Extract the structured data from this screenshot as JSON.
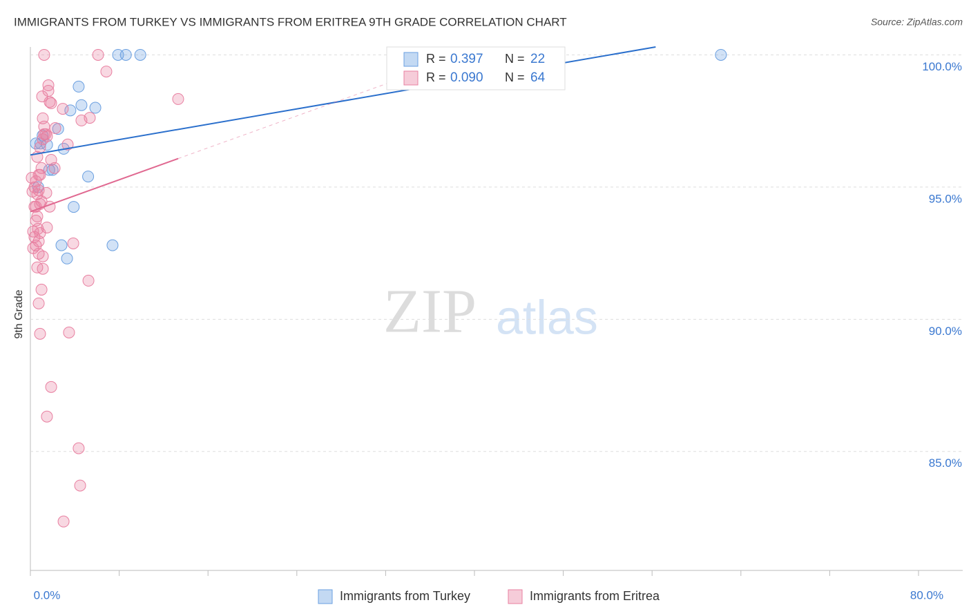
{
  "chart_data": {
    "type": "scatter",
    "title": "IMMIGRANTS FROM TURKEY VS IMMIGRANTS FROM ERITREA 9TH GRADE CORRELATION CHART",
    "source": "Source: ZipAtlas.com",
    "y_label": "9th Grade",
    "watermark": [
      "ZIP",
      "atlas"
    ],
    "r_label": "R =",
    "n_label": "N =",
    "xlim": [
      0,
      80
    ],
    "ylim": [
      80.5,
      100.3
    ],
    "xticks": [
      {
        "value": 0,
        "label": "0.0%"
      },
      {
        "value": 80,
        "label": "80.0%"
      }
    ],
    "yticks": [
      {
        "value": 85,
        "label": "85.0%"
      },
      {
        "value": 90,
        "label": "90.0%"
      },
      {
        "value": 95,
        "label": "95.0%"
      },
      {
        "value": 100,
        "label": "100.0%"
      }
    ],
    "grid": true,
    "series": [
      {
        "name": "Immigrants from Turkey",
        "color": "#6a9fe0",
        "line_color": "#2a6fcc",
        "r": 0.397,
        "n": 22,
        "x": [
          7.9,
          8.6,
          9.9,
          62.2,
          4.35,
          4.6,
          5.85,
          3.6,
          2.5,
          1.1,
          0.5,
          0.9,
          1.5,
          3.0,
          5.2,
          1.7,
          2.0,
          3.9,
          2.8,
          7.4,
          3.3,
          0.7
        ],
        "values": [
          100,
          100,
          100,
          100,
          98.8,
          98.1,
          98.0,
          97.9,
          97.2,
          96.95,
          96.65,
          96.65,
          96.6,
          96.45,
          95.4,
          95.65,
          95.65,
          94.25,
          92.8,
          92.8,
          92.3,
          95.0
        ]
      },
      {
        "name": "Immigrants from Eritrea",
        "color": "#e87fa0",
        "line_color": "#e06890",
        "r": {
          "value": 0.09,
          "label": "0.090"
        },
        "n": 64,
        "x": [
          1.24,
          6.1,
          6.84,
          1.62,
          1.62,
          1.06,
          13.31,
          1.74,
          1.87,
          2.92,
          5.35,
          1.12,
          4.6,
          1.24,
          2.24,
          1.24,
          1.49,
          1.12,
          3.36,
          0.87,
          0.62,
          1.87,
          1.0,
          2.18,
          0.87,
          0.12,
          0.5,
          0.37,
          0.75,
          0.19,
          1.43,
          0.62,
          0.87,
          0.37,
          0.62,
          0.5,
          1.49,
          0.68,
          0.25,
          0.87,
          0.37,
          0.75,
          3.86,
          0.5,
          1.12,
          0.75,
          0.62,
          1.12,
          5.23,
          1.0,
          0.75,
          0.87,
          3.48,
          1.87,
          1.49,
          4.35,
          4.48,
          2.99,
          0.25,
          0.5,
          1.37,
          1.74,
          0.75,
          1.0
        ],
        "values": [
          100,
          100,
          99.37,
          98.85,
          98.64,
          98.43,
          98.33,
          98.22,
          98.17,
          97.96,
          97.62,
          97.6,
          97.52,
          97.29,
          97.23,
          97.0,
          96.92,
          96.81,
          96.61,
          96.5,
          96.14,
          96.03,
          95.72,
          95.72,
          95.46,
          95.35,
          95.22,
          94.99,
          94.88,
          94.83,
          94.78,
          94.73,
          94.36,
          94.26,
          93.89,
          93.73,
          93.47,
          93.42,
          93.32,
          93.26,
          93.11,
          92.95,
          92.87,
          92.79,
          92.38,
          92.48,
          91.96,
          91.91,
          91.46,
          91.12,
          90.6,
          89.45,
          89.5,
          87.44,
          86.32,
          85.12,
          83.71,
          82.35,
          92.69,
          94.26,
          97.0,
          94.26,
          95.46,
          94.46
        ]
      }
    ]
  }
}
